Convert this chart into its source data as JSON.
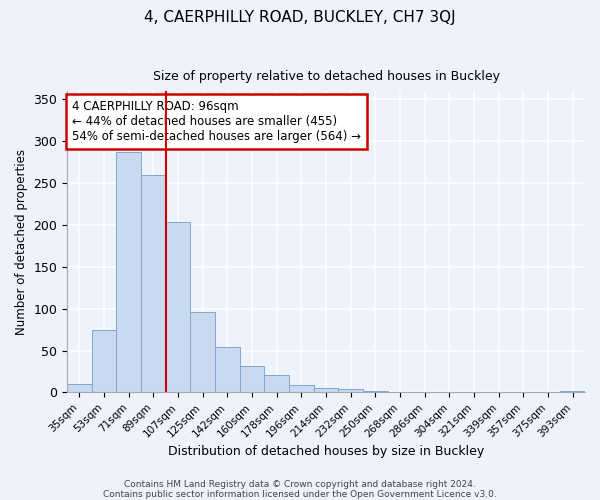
{
  "title": "4, CAERPHILLY ROAD, BUCKLEY, CH7 3QJ",
  "subtitle": "Size of property relative to detached houses in Buckley",
  "xlabel": "Distribution of detached houses by size in Buckley",
  "ylabel": "Number of detached properties",
  "bar_labels": [
    "35sqm",
    "53sqm",
    "71sqm",
    "89sqm",
    "107sqm",
    "125sqm",
    "142sqm",
    "160sqm",
    "178sqm",
    "196sqm",
    "214sqm",
    "232sqm",
    "250sqm",
    "268sqm",
    "286sqm",
    "304sqm",
    "321sqm",
    "339sqm",
    "357sqm",
    "375sqm",
    "393sqm"
  ],
  "bar_values": [
    10,
    74,
    287,
    260,
    204,
    96,
    54,
    31,
    21,
    9,
    5,
    4,
    2,
    0,
    0,
    0,
    0,
    0,
    0,
    0,
    2
  ],
  "bar_color": "#c9d9f0",
  "bar_edge_color": "#7fa8d0",
  "vline_x": 3.5,
  "vline_color": "#cc0000",
  "ylim": [
    0,
    360
  ],
  "annotation_text": "4 CAERPHILLY ROAD: 96sqm\n← 44% of detached houses are smaller (455)\n54% of semi-detached houses are larger (564) →",
  "annotation_box_color": "white",
  "annotation_box_edge_color": "#cc0000",
  "footer1": "Contains HM Land Registry data © Crown copyright and database right 2024.",
  "footer2": "Contains public sector information licensed under the Open Government Licence v3.0.",
  "background_color": "#eef2fb",
  "grid_color": "white"
}
